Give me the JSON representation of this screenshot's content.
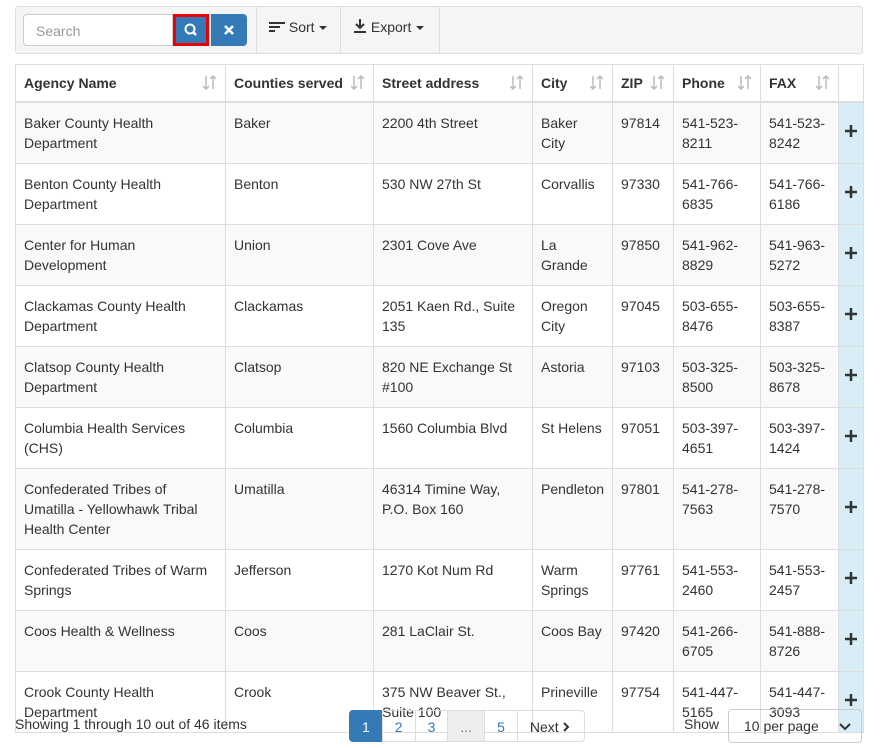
{
  "toolbar": {
    "search_placeholder": "Search",
    "sort": "Sort",
    "export": "Export"
  },
  "table": {
    "columns": [
      "Agency Name",
      "Counties served",
      "Street address",
      "City",
      "ZIP",
      "Phone",
      "FAX"
    ],
    "rows": [
      [
        "Baker County Health Department",
        "Baker",
        "2200 4th Street",
        "Baker City",
        "97814",
        "541-523-8211",
        "541-523-8242"
      ],
      [
        "Benton County Health Department",
        "Benton",
        "530 NW 27th St",
        "Corvallis",
        "97330",
        "541-766-6835",
        "541-766-6186"
      ],
      [
        "Center for Human Development",
        "Union",
        "2301 Cove Ave",
        "La Grande",
        "97850",
        "541-962-8829",
        "541-963-5272"
      ],
      [
        "Clackamas County Health Department",
        "Clackamas",
        "2051 Kaen Rd., Suite 135",
        "Oregon City",
        "97045",
        "503-655-8476",
        "503-655-8387"
      ],
      [
        "Clatsop County Health Department",
        "Clatsop",
        "820 NE Exchange St #100",
        "Astoria",
        "97103",
        "503-325-8500",
        "503-325-8678"
      ],
      [
        "Columbia Health Services (CHS)",
        "Columbia",
        "1560 Columbia Blvd",
        "St Helens",
        "97051",
        "503-397-4651",
        "503-397-1424"
      ],
      [
        "Confederated Tribes of Umatilla - Yellowhawk Tribal Health Center",
        "Umatilla",
        "46314 Timine Way, P.O. Box 160",
        "Pendleton",
        "97801",
        "541-278-7563",
        "541-278-7570"
      ],
      [
        "Confederated Tribes of Warm Springs",
        "Jefferson",
        "1270 Kot Num Rd",
        "Warm Springs",
        "97761",
        "541-553-2460",
        "541-553-2457"
      ],
      [
        "Coos Health & Wellness",
        "Coos",
        "281 LaClair St.",
        "Coos Bay",
        "97420",
        "541-266-6705",
        "541-888-8726"
      ],
      [
        "Crook County Health Department",
        "Crook",
        "375 NW Beaver St., Suite 100",
        "Prineville",
        "97754",
        "541-447-5165",
        "541-447-3093"
      ]
    ]
  },
  "footer": {
    "summary": "Showing 1 through 10 out of 46 items",
    "pages": [
      "1",
      "2",
      "3",
      "...",
      "5"
    ],
    "next": "Next",
    "show_label": "Show",
    "per_page": "10 per page"
  }
}
